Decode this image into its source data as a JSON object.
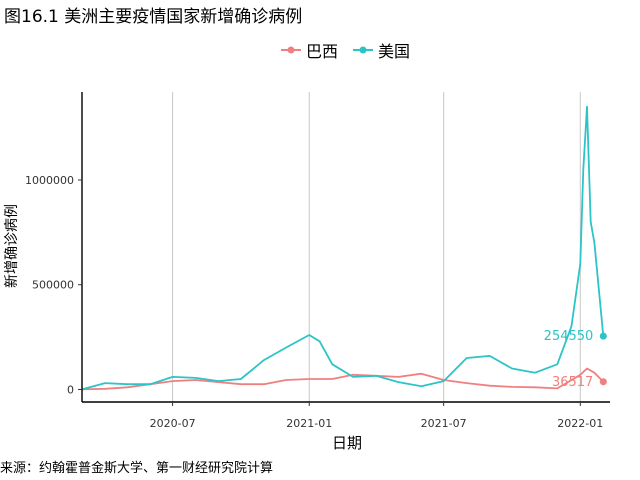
{
  "figure": {
    "title": "图16.1 美洲主要疫情国家新增确诊病例",
    "source": "来源：约翰霍普金斯大学、第一财经研究院计算"
  },
  "chart_data": {
    "type": "line",
    "title": "",
    "xlabel": "日期",
    "ylabel": "新增确诊病例",
    "x_ticks": [
      "2020-07",
      "2021-01",
      "2021-07",
      "2022-01"
    ],
    "y_ticks": [
      0,
      500000,
      1000000
    ],
    "y_tick_labels": [
      "0",
      "500000",
      "1000000"
    ],
    "xlim": [
      "2020-03-01",
      "2022-02-10"
    ],
    "ylim": [
      -60000,
      1420000
    ],
    "grid": "vertical major lines only",
    "legend_placement": "top",
    "series": [
      {
        "name": "巴西",
        "color": "#F08080",
        "end_label": "36517",
        "end_value": 36517,
        "points": [
          [
            "2020-03-01",
            0
          ],
          [
            "2020-04-01",
            3000
          ],
          [
            "2020-05-01",
            10000
          ],
          [
            "2020-06-01",
            25000
          ],
          [
            "2020-07-01",
            40000
          ],
          [
            "2020-08-01",
            45000
          ],
          [
            "2020-09-01",
            35000
          ],
          [
            "2020-10-01",
            25000
          ],
          [
            "2020-11-01",
            25000
          ],
          [
            "2020-12-01",
            45000
          ],
          [
            "2021-01-01",
            50000
          ],
          [
            "2021-02-01",
            50000
          ],
          [
            "2021-03-01",
            70000
          ],
          [
            "2021-04-01",
            65000
          ],
          [
            "2021-05-01",
            60000
          ],
          [
            "2021-06-01",
            75000
          ],
          [
            "2021-07-01",
            45000
          ],
          [
            "2021-08-01",
            30000
          ],
          [
            "2021-09-01",
            18000
          ],
          [
            "2021-10-01",
            12000
          ],
          [
            "2021-11-01",
            10000
          ],
          [
            "2021-12-01",
            5000
          ],
          [
            "2022-01-01",
            70000
          ],
          [
            "2022-01-10",
            100000
          ],
          [
            "2022-01-20",
            80000
          ],
          [
            "2022-02-01",
            36517
          ]
        ]
      },
      {
        "name": "美国",
        "color": "#2BC4C7",
        "end_label": "254550",
        "end_value": 254550,
        "points": [
          [
            "2020-03-01",
            0
          ],
          [
            "2020-04-01",
            30000
          ],
          [
            "2020-05-01",
            25000
          ],
          [
            "2020-06-01",
            25000
          ],
          [
            "2020-07-01",
            60000
          ],
          [
            "2020-08-01",
            55000
          ],
          [
            "2020-09-01",
            40000
          ],
          [
            "2020-10-01",
            50000
          ],
          [
            "2020-11-01",
            140000
          ],
          [
            "2020-12-01",
            200000
          ],
          [
            "2021-01-01",
            260000
          ],
          [
            "2021-01-15",
            230000
          ],
          [
            "2021-02-01",
            120000
          ],
          [
            "2021-03-01",
            60000
          ],
          [
            "2021-04-01",
            65000
          ],
          [
            "2021-05-01",
            35000
          ],
          [
            "2021-06-01",
            15000
          ],
          [
            "2021-07-01",
            40000
          ],
          [
            "2021-08-01",
            150000
          ],
          [
            "2021-09-01",
            160000
          ],
          [
            "2021-10-01",
            100000
          ],
          [
            "2021-11-01",
            80000
          ],
          [
            "2021-12-01",
            120000
          ],
          [
            "2021-12-20",
            300000
          ],
          [
            "2022-01-01",
            600000
          ],
          [
            "2022-01-05",
            1050000
          ],
          [
            "2022-01-10",
            1350000
          ],
          [
            "2022-01-15",
            800000
          ],
          [
            "2022-01-20",
            700000
          ],
          [
            "2022-02-01",
            254550
          ]
        ]
      }
    ]
  }
}
